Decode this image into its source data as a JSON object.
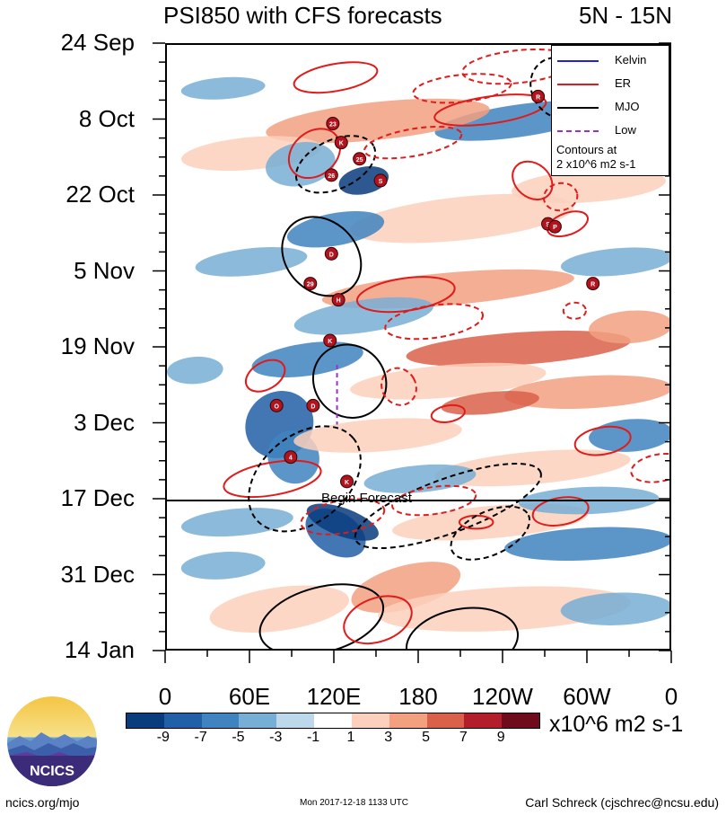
{
  "title": "PSI850 with CFS forecasts",
  "latitude_band": "5N - 15N",
  "chart_data": {
    "type": "heatmap",
    "title": "PSI850 with CFS forecasts",
    "subtitle": "5N - 15N",
    "xlabel": "",
    "ylabel": "",
    "x_ticks": [
      "0",
      "60E",
      "120E",
      "180",
      "120W",
      "60W",
      "0"
    ],
    "x_tick_values": [
      0,
      60,
      120,
      180,
      240,
      300,
      360
    ],
    "xlim": [
      0,
      360
    ],
    "y_ticks": [
      "24 Sep",
      "8 Oct",
      "22 Oct",
      "5 Nov",
      "19 Nov",
      "3 Dec",
      "17 Dec",
      "31 Dec",
      "14 Jan"
    ],
    "y_tick_days": [
      0,
      14,
      28,
      42,
      56,
      70,
      84,
      98,
      112
    ],
    "ylim_days": [
      0,
      112
    ],
    "y_direction": "downward",
    "colorbar": {
      "labels": [
        "-9",
        "-7",
        "-5",
        "-3",
        "-1",
        "1",
        "3",
        "5",
        "7",
        "9"
      ],
      "colors": [
        "#083c7c",
        "#215fa6",
        "#3f84bf",
        "#77aed5",
        "#bcd8ea",
        "#ffffff",
        "#fcd0bc",
        "#f2a080",
        "#d9604a",
        "#b31e2c",
        "#6e0c1c"
      ],
      "units": "x10^6 m2 s-1"
    },
    "legend": [
      {
        "label": "Kelvin",
        "color": "#2020dd",
        "dash": "solid"
      },
      {
        "label": "ER",
        "color": "#e01b1b",
        "dash": "solid"
      },
      {
        "label": "MJO",
        "color": "#000000",
        "dash": "solid"
      },
      {
        "label": "Low",
        "color": "#9a30cc",
        "dash": "dashed"
      }
    ],
    "contour_note": [
      "Contours at",
      "2 x10^6 m2 s-1"
    ],
    "forecast_start": {
      "label": "Begin Forecast",
      "date": "17 Dec",
      "day": 84
    },
    "grid": false,
    "legend_position": "top-right",
    "storms": [
      {
        "label": "23",
        "lon": 118,
        "day": 14.5
      },
      {
        "label": "K",
        "lon": 124,
        "day": 18
      },
      {
        "label": "25",
        "lon": 137,
        "day": 21
      },
      {
        "label": "26",
        "lon": 117,
        "day": 24
      },
      {
        "label": "S",
        "lon": 152,
        "day": 25
      },
      {
        "label": "R",
        "lon": 264,
        "day": 9.5
      },
      {
        "label": "S",
        "lon": 271,
        "day": 33
      },
      {
        "label": "P",
        "lon": 276,
        "day": 33.5
      },
      {
        "label": "D",
        "lon": 117,
        "day": 38.5
      },
      {
        "label": "29",
        "lon": 102,
        "day": 44
      },
      {
        "label": "R",
        "lon": 303,
        "day": 44
      },
      {
        "label": "H",
        "lon": 122,
        "day": 47
      },
      {
        "label": "K",
        "lon": 116,
        "day": 54.5
      },
      {
        "label": "O",
        "lon": 78,
        "day": 66.5
      },
      {
        "label": "D",
        "lon": 104,
        "day": 66.5
      },
      {
        "label": "4",
        "lon": 88,
        "day": 76
      },
      {
        "label": "K",
        "lon": 128,
        "day": 80.5
      }
    ]
  },
  "footer": {
    "left": "ncics.org/mjo",
    "middle": "Mon 2017-12-18 1133 UTC",
    "right": "Carl Schreck (cjschrec@ncsu.edu)"
  },
  "logo_text": "NCICS"
}
